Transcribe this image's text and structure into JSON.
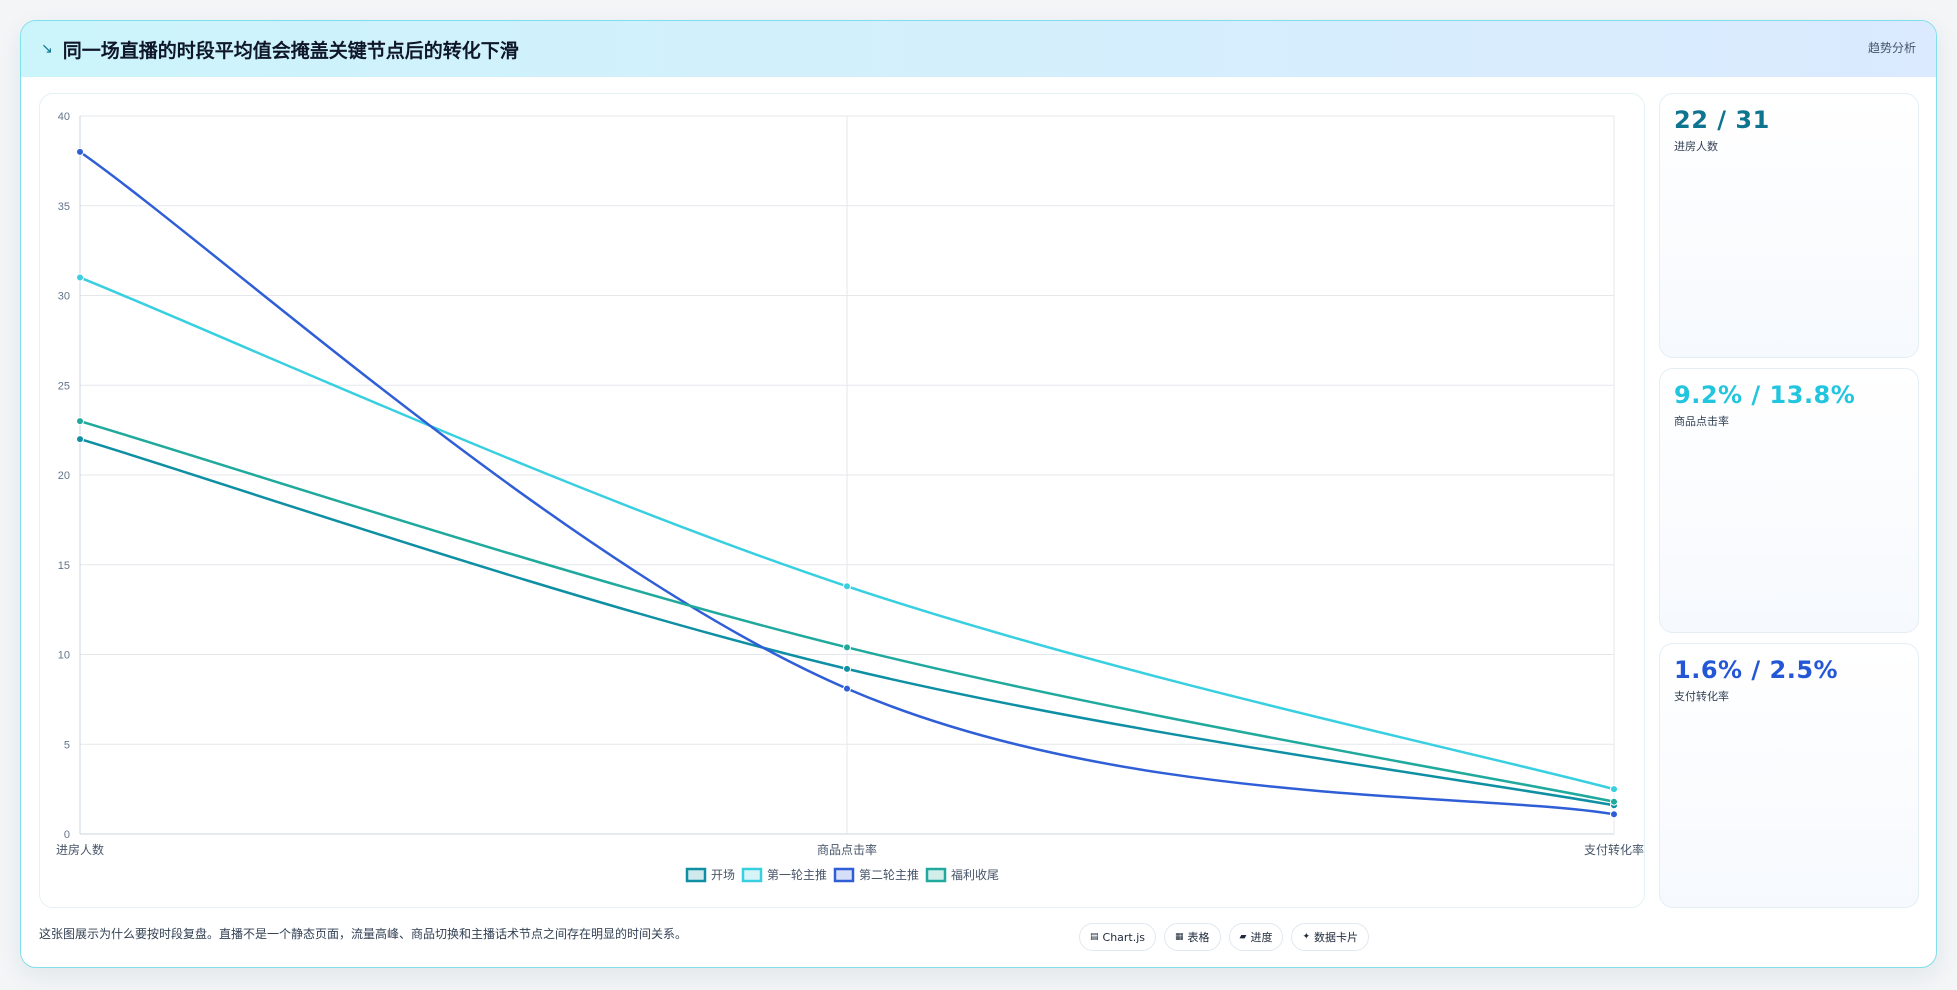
{
  "header": {
    "icon": "trend-line-icon",
    "title": "同一场直播的时段平均值会掩盖关键节点后的转化下滑",
    "tag": "趋势分析"
  },
  "stats": [
    {
      "value": "22 / 31",
      "label": "进房人数",
      "color": "#0e7490"
    },
    {
      "value": "9.2% / 13.8%",
      "label": "商品点击率",
      "color": "#22c5de"
    },
    {
      "value": "1.6% / 2.5%",
      "label": "支付转化率",
      "color": "#2457d6"
    }
  ],
  "footer": {
    "text": "这张图展示为什么要按时段复盘。直播不是一个静态页面，流量高峰、商品切换和主播话术节点之间存在明显的时间关系。"
  },
  "pills": [
    {
      "icon": "chart-icon",
      "glyph": "▤",
      "label": "Chart.js"
    },
    {
      "icon": "table-icon",
      "glyph": "▦",
      "label": "表格"
    },
    {
      "icon": "progress-icon",
      "glyph": "▰",
      "label": "进度"
    },
    {
      "icon": "sparkle-icon",
      "glyph": "✦",
      "label": "数据卡片"
    }
  ],
  "chart_data": {
    "type": "line",
    "categories": [
      "进房人数",
      "商品点击率",
      "支付转化率"
    ],
    "ylim": [
      0,
      40
    ],
    "yticks": [
      0,
      5,
      10,
      15,
      20,
      25,
      30,
      35,
      40
    ],
    "grid": true,
    "legend_position": "bottom",
    "series": [
      {
        "name": "开场",
        "color": "#0e8fa3",
        "values": [
          22,
          9.2,
          1.6
        ]
      },
      {
        "name": "第一轮主推",
        "color": "#38cfe0",
        "values": [
          31,
          13.8,
          2.5
        ]
      },
      {
        "name": "第二轮主推",
        "color": "#2f5ed6",
        "values": [
          38,
          8.1,
          1.1
        ]
      },
      {
        "name": "福利收尾",
        "color": "#20a99d",
        "values": [
          23,
          10.4,
          1.8
        ]
      }
    ]
  }
}
